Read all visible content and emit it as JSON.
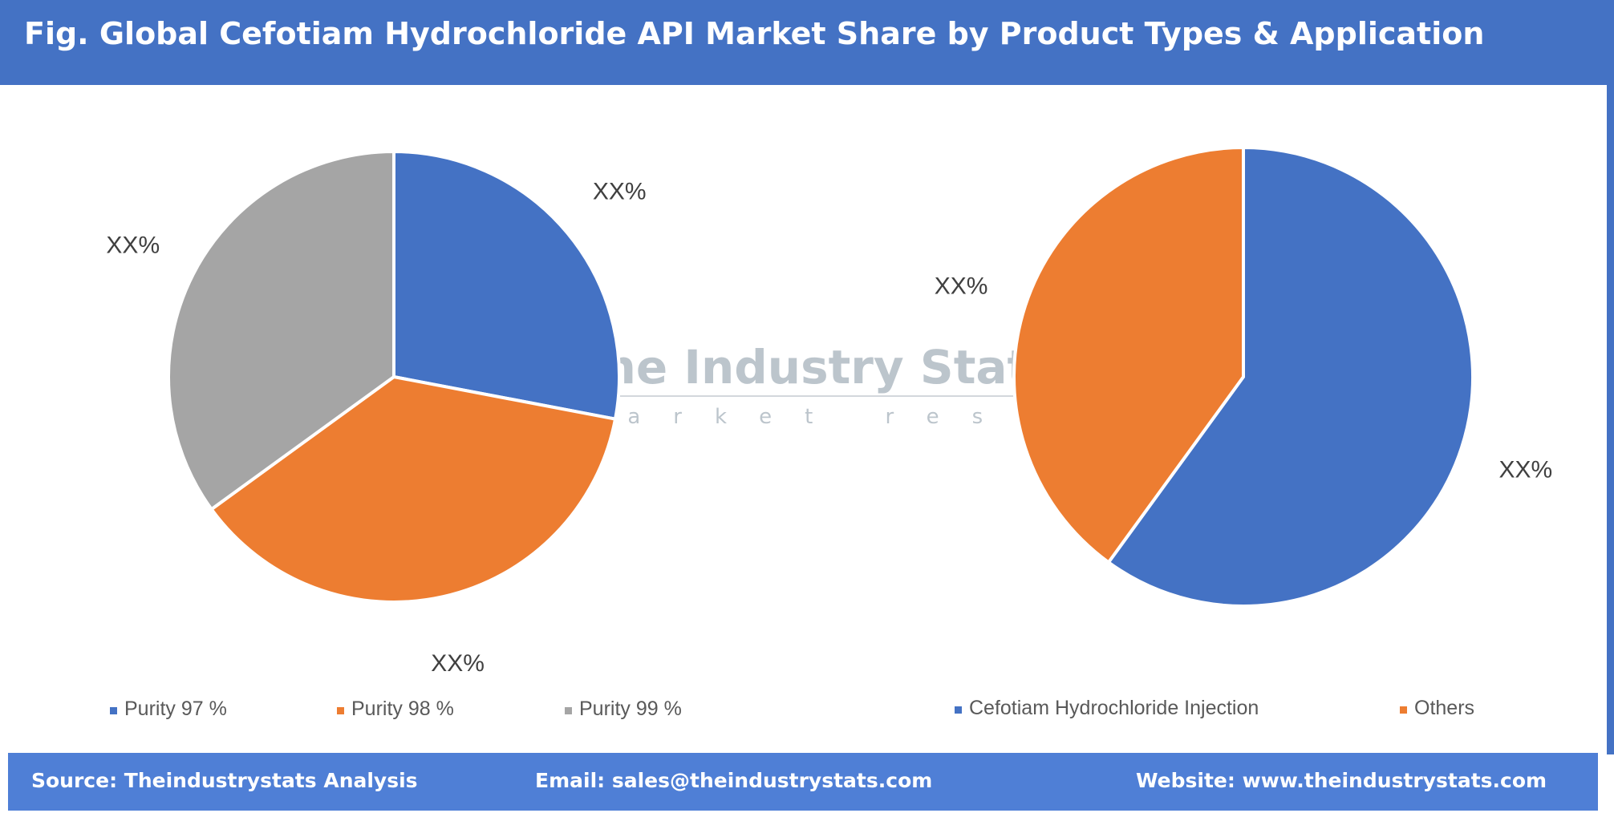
{
  "header": {
    "title": "Fig. Global Cefotiam Hydrochloride API Market Share by Product Types & Application"
  },
  "watermark": {
    "name": "The Industry Stats",
    "tagline": "market research"
  },
  "colors": {
    "blue": "#4472c4",
    "orange": "#ed7d31",
    "gray": "#a5a5a5",
    "header": "#4472c4",
    "footer": "#4f7fd6"
  },
  "chart_data": [
    {
      "type": "pie",
      "title": "",
      "labels": [
        "Purity 97 %",
        "Purity 98 %",
        "Purity 99 %"
      ],
      "values": [
        28,
        37,
        35
      ],
      "data_labels": [
        "XX%",
        "XX%",
        "XX%"
      ],
      "colors": [
        "#4472c4",
        "#ed7d31",
        "#a5a5a5"
      ],
      "legend": "bottom"
    },
    {
      "type": "pie",
      "title": "",
      "labels": [
        "Cefotiam Hydrochloride Injection",
        "Others"
      ],
      "values": [
        60,
        40
      ],
      "data_labels": [
        "XX%",
        "XX%"
      ],
      "colors": [
        "#4472c4",
        "#ed7d31"
      ],
      "legend": "bottom"
    }
  ],
  "footer": {
    "source": "Source: Theindustrystats Analysis",
    "email": "Email: sales@theindustrystats.com",
    "website": "Website: www.theindustrystats.com"
  }
}
